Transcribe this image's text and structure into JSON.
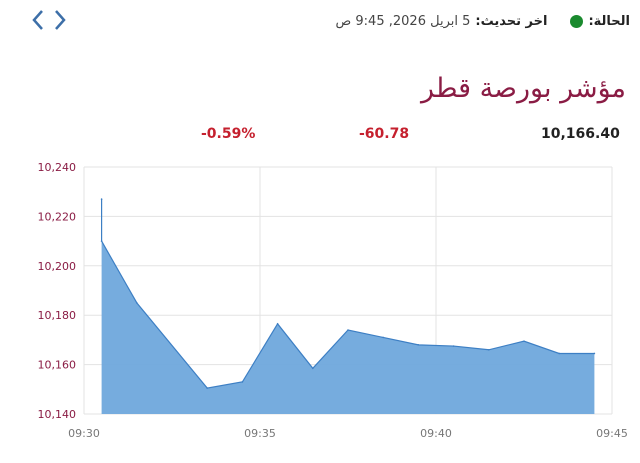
{
  "status": {
    "label": "الحالة:",
    "dot_color": "#1a8a2e",
    "update_label": "اخر تحديث:",
    "update_value": "5 ابريل 2026, 9:45 ص"
  },
  "nav": {
    "prev_icon": "chevron-left-icon",
    "next_icon": "chevron-right-icon"
  },
  "title": "مؤشر بورصة قطر",
  "stats": {
    "value": "10,166.40",
    "change": "-60.78",
    "percent": "-0.59%"
  },
  "colors": {
    "accent": "#8a1c44",
    "negative": "#c5202e",
    "area_fill": "#6fa8dc",
    "area_stroke": "#3d7fc4"
  },
  "chart_data": {
    "type": "area",
    "x_ticks": [
      "09:30",
      "09:35",
      "09:40",
      "09:45"
    ],
    "y_ticks": [
      "10,140",
      "10,160",
      "10,180",
      "10,200",
      "10,220",
      "10,240"
    ],
    "ylim": [
      10140,
      10240
    ],
    "xlim_minutes": [
      0,
      15
    ],
    "grid": true,
    "points": [
      {
        "t": 0.5,
        "v": 10227
      },
      {
        "t": 0.5,
        "v": 10210
      },
      {
        "t": 1.5,
        "v": 10185
      },
      {
        "t": 3.5,
        "v": 10150.5
      },
      {
        "t": 4.5,
        "v": 10153
      },
      {
        "t": 5.5,
        "v": 10176.5
      },
      {
        "t": 6.5,
        "v": 10158.5
      },
      {
        "t": 7.5,
        "v": 10174
      },
      {
        "t": 8.5,
        "v": 10171
      },
      {
        "t": 9.5,
        "v": 10168
      },
      {
        "t": 10.5,
        "v": 10167.5
      },
      {
        "t": 11.5,
        "v": 10166
      },
      {
        "t": 12.5,
        "v": 10169.5
      },
      {
        "t": 13.5,
        "v": 10164.5
      },
      {
        "t": 14.5,
        "v": 10164.5
      }
    ]
  }
}
